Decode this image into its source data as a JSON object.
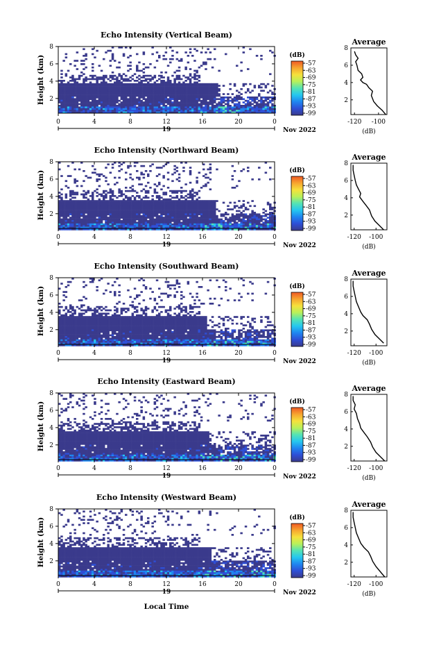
{
  "figure": {
    "xlabel": "Local Time",
    "date_label": "Nov 2022",
    "day_label": "19",
    "colorbar_unit": "(dB)",
    "colorbar_levels": [
      "-57",
      "-63",
      "-69",
      "-75",
      "-81",
      "-87",
      "-93",
      "-99"
    ],
    "colormap": [
      "#3a3a8c",
      "#2e4fd6",
      "#1f86f0",
      "#25c7ef",
      "#55e3b4",
      "#b8f05a",
      "#f6e13c",
      "#f7a52f",
      "#ef5a24"
    ],
    "profile_title": "Average",
    "profile_xlabel": "(dB)"
  },
  "chart_data": [
    {
      "type": "heatmap",
      "title": "Echo Intensity (Vertical Beam)",
      "ylabel": "Height (km)",
      "x_ticks": [
        "0",
        "4",
        "8",
        "12",
        "16",
        "20",
        "0"
      ],
      "y_ticks": [
        "2",
        "4",
        "6",
        "8"
      ],
      "xlim": [
        0,
        24
      ],
      "ylim": [
        0.3,
        8
      ],
      "colorbar": {
        "label": "(dB)",
        "range": [
          -99,
          -57
        ],
        "ticks": [
          "-57",
          "-63",
          "-69",
          "-75",
          "-81",
          "-87",
          "-93",
          "-99"
        ]
      },
      "profile": {
        "title": "Average",
        "xlabel": "(dB)",
        "x_ticks": [
          "-120",
          "-100"
        ],
        "y_ticks": [
          "2",
          "4",
          "6",
          "8"
        ],
        "xlim": [
          -123,
          -93
        ],
        "points": [
          [
            -94,
            0.3
          ],
          [
            -97,
            0.8
          ],
          [
            -101,
            1.3
          ],
          [
            -104,
            1.8
          ],
          [
            -106,
            2.5
          ],
          [
            -105,
            3.0
          ],
          [
            -108,
            3.4
          ],
          [
            -110,
            3.8
          ],
          [
            -113,
            4.0
          ],
          [
            -115,
            4.3
          ],
          [
            -113,
            4.6
          ],
          [
            -114,
            5.0
          ],
          [
            -117,
            5.4
          ],
          [
            -118,
            6.0
          ],
          [
            -119,
            6.4
          ],
          [
            -117,
            6.8
          ],
          [
            -119,
            7.2
          ],
          [
            -120,
            7.6
          ]
        ]
      }
    },
    {
      "type": "heatmap",
      "title": "Echo Intensity (Northward Beam)",
      "ylabel": "Height (km)",
      "x_ticks": [
        "0",
        "4",
        "8",
        "12",
        "16",
        "20",
        "0"
      ],
      "y_ticks": [
        "2",
        "4",
        "6",
        "8"
      ],
      "xlim": [
        0,
        24
      ],
      "ylim": [
        0.3,
        8
      ],
      "colorbar": {
        "label": "(dB)",
        "range": [
          -99,
          -57
        ],
        "ticks": [
          "-57",
          "-63",
          "-69",
          "-75",
          "-81",
          "-87",
          "-93",
          "-99"
        ]
      },
      "profile": {
        "title": "Average",
        "xlabel": "(dB)",
        "x_ticks": [
          "-120",
          "-100"
        ],
        "y_ticks": [
          "2",
          "4",
          "6",
          "8"
        ],
        "xlim": [
          -123,
          -90
        ],
        "points": [
          [
            -93,
            0.3
          ],
          [
            -97,
            0.8
          ],
          [
            -101,
            1.3
          ],
          [
            -104,
            1.9
          ],
          [
            -106,
            2.6
          ],
          [
            -109,
            3.1
          ],
          [
            -112,
            3.6
          ],
          [
            -115,
            4.1
          ],
          [
            -114,
            4.5
          ],
          [
            -116,
            5.0
          ],
          [
            -118,
            5.5
          ],
          [
            -119,
            6.0
          ],
          [
            -120,
            6.6
          ],
          [
            -121,
            7.2
          ],
          [
            -121,
            7.8
          ]
        ]
      }
    },
    {
      "type": "heatmap",
      "title": "Echo Intensity (Southward Beam)",
      "ylabel": "Height (km)",
      "x_ticks": [
        "0",
        "4",
        "8",
        "12",
        "16",
        "20",
        "0"
      ],
      "y_ticks": [
        "2",
        "4",
        "6",
        "8"
      ],
      "xlim": [
        0,
        24
      ],
      "ylim": [
        0.3,
        8
      ],
      "colorbar": {
        "label": "(dB)",
        "range": [
          -99,
          -57
        ],
        "ticks": [
          "-57",
          "-63",
          "-69",
          "-75",
          "-81",
          "-87",
          "-93",
          "-99"
        ]
      },
      "profile": {
        "title": "Average",
        "xlabel": "(dB)",
        "x_ticks": [
          "-120",
          "-100"
        ],
        "y_ticks": [
          "2",
          "4",
          "6",
          "8"
        ],
        "xlim": [
          -123,
          -90
        ],
        "points": [
          [
            -93,
            0.6
          ],
          [
            -97,
            1.1
          ],
          [
            -101,
            1.6
          ],
          [
            -104,
            2.2
          ],
          [
            -106,
            2.8
          ],
          [
            -108,
            3.3
          ],
          [
            -112,
            3.8
          ],
          [
            -114,
            4.2
          ],
          [
            -116,
            4.8
          ],
          [
            -118,
            5.4
          ],
          [
            -119,
            6.0
          ],
          [
            -120,
            6.6
          ],
          [
            -121,
            7.2
          ],
          [
            -121,
            7.8
          ]
        ]
      }
    },
    {
      "type": "heatmap",
      "title": "Echo Intensity (Eastward Beam)",
      "ylabel": "Height (km)",
      "x_ticks": [
        "0",
        "4",
        "8",
        "12",
        "16",
        "20",
        "0"
      ],
      "y_ticks": [
        "2",
        "4",
        "6",
        "8"
      ],
      "xlim": [
        0,
        24
      ],
      "ylim": [
        0.3,
        8
      ],
      "colorbar": {
        "label": "(dB)",
        "range": [
          -99,
          -57
        ],
        "ticks": [
          "-57",
          "-63",
          "-69",
          "-75",
          "-81",
          "-87",
          "-93",
          "-99"
        ]
      },
      "profile": {
        "title": "Average",
        "xlabel": "(dB)",
        "x_ticks": [
          "-120",
          "-100"
        ],
        "y_ticks": [
          "2",
          "4",
          "6",
          "8"
        ],
        "xlim": [
          -123,
          -90
        ],
        "points": [
          [
            -92,
            0.3
          ],
          [
            -96,
            0.8
          ],
          [
            -100,
            1.3
          ],
          [
            -103,
            1.9
          ],
          [
            -105,
            2.5
          ],
          [
            -108,
            3.1
          ],
          [
            -111,
            3.6
          ],
          [
            -114,
            4.1
          ],
          [
            -115,
            4.6
          ],
          [
            -117,
            5.2
          ],
          [
            -118,
            5.8
          ],
          [
            -120,
            6.3
          ],
          [
            -119,
            6.8
          ],
          [
            -121,
            7.3
          ],
          [
            -121,
            7.8
          ]
        ]
      }
    },
    {
      "type": "heatmap",
      "title": "Echo Intensity (Westward Beam)",
      "ylabel": "Height (km)",
      "x_ticks": [
        "0",
        "4",
        "8",
        "12",
        "16",
        "20",
        "0"
      ],
      "y_ticks": [
        "2",
        "4",
        "6",
        "8"
      ],
      "xlim": [
        0,
        24
      ],
      "ylim": [
        0.3,
        8
      ],
      "colorbar": {
        "label": "(dB)",
        "range": [
          -99,
          -57
        ],
        "ticks": [
          "-57",
          "-63",
          "-69",
          "-75",
          "-81",
          "-87",
          "-93",
          "-99"
        ]
      },
      "profile": {
        "title": "Average",
        "xlabel": "(dB)",
        "x_ticks": [
          "-120",
          "-100"
        ],
        "y_ticks": [
          "2",
          "4",
          "6",
          "8"
        ],
        "xlim": [
          -123,
          -90
        ],
        "points": [
          [
            -92,
            0.3
          ],
          [
            -96,
            0.9
          ],
          [
            -100,
            1.5
          ],
          [
            -103,
            2.1
          ],
          [
            -105,
            2.7
          ],
          [
            -107,
            3.2
          ],
          [
            -111,
            3.7
          ],
          [
            -114,
            4.2
          ],
          [
            -116,
            4.8
          ],
          [
            -118,
            5.4
          ],
          [
            -119,
            6.0
          ],
          [
            -120,
            6.6
          ],
          [
            -121,
            7.2
          ],
          [
            -121,
            7.8
          ]
        ]
      }
    }
  ]
}
